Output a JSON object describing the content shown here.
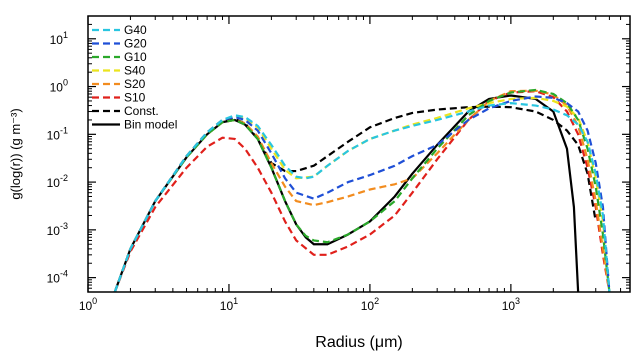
{
  "chart_data": {
    "type": "line",
    "xlabel": "Radius (μm)",
    "ylabel": "g(log(r)) (g m⁻³)",
    "x_scale": "log",
    "y_scale": "log",
    "xlim": [
      1,
      7000
    ],
    "ylim": [
      5e-05,
      30
    ],
    "x_ticks": [
      {
        "value": 1,
        "base": "10",
        "exp": "0"
      },
      {
        "value": 10,
        "base": "10",
        "exp": "1"
      },
      {
        "value": 100,
        "base": "10",
        "exp": "2"
      },
      {
        "value": 1000,
        "base": "10",
        "exp": "3"
      }
    ],
    "y_ticks": [
      {
        "value": 0.0001,
        "base": "10",
        "exp": "-4"
      },
      {
        "value": 0.001,
        "base": "10",
        "exp": "-3"
      },
      {
        "value": 0.01,
        "base": "10",
        "exp": "-2"
      },
      {
        "value": 0.1,
        "base": "10",
        "exp": "-1"
      },
      {
        "value": 1,
        "base": "10",
        "exp": "0"
      },
      {
        "value": 10,
        "base": "10",
        "exp": "1"
      }
    ],
    "legend_position": "top-left",
    "series": [
      {
        "name": "G40",
        "color": "#29c5e0",
        "dash": "dashed",
        "points": [
          [
            1.55,
            5e-05
          ],
          [
            2,
            0.0004
          ],
          [
            3,
            0.004
          ],
          [
            5,
            0.035
          ],
          [
            7,
            0.11
          ],
          [
            9,
            0.2
          ],
          [
            11,
            0.25
          ],
          [
            13,
            0.23
          ],
          [
            16,
            0.15
          ],
          [
            20,
            0.06
          ],
          [
            25,
            0.022
          ],
          [
            30,
            0.013
          ],
          [
            35,
            0.012
          ],
          [
            40,
            0.013
          ],
          [
            50,
            0.022
          ],
          [
            70,
            0.045
          ],
          [
            100,
            0.08
          ],
          [
            150,
            0.12
          ],
          [
            200,
            0.15
          ],
          [
            300,
            0.2
          ],
          [
            500,
            0.3
          ],
          [
            700,
            0.4
          ],
          [
            1000,
            0.45
          ],
          [
            1500,
            0.4
          ],
          [
            2000,
            0.33
          ],
          [
            2500,
            0.25
          ],
          [
            3000,
            0.16
          ],
          [
            3500,
            0.07
          ],
          [
            4000,
            0.015
          ],
          [
            4500,
            0.002
          ],
          [
            5000,
            5e-05
          ]
        ]
      },
      {
        "name": "G20",
        "color": "#1f4fd6",
        "dash": "dashed",
        "points": [
          [
            1.55,
            5e-05
          ],
          [
            2,
            0.0004
          ],
          [
            3,
            0.004
          ],
          [
            5,
            0.035
          ],
          [
            7,
            0.11
          ],
          [
            9,
            0.2
          ],
          [
            11,
            0.23
          ],
          [
            13,
            0.2
          ],
          [
            16,
            0.12
          ],
          [
            20,
            0.04
          ],
          [
            25,
            0.012
          ],
          [
            30,
            0.006
          ],
          [
            40,
            0.0045
          ],
          [
            50,
            0.006
          ],
          [
            70,
            0.01
          ],
          [
            100,
            0.014
          ],
          [
            150,
            0.022
          ],
          [
            200,
            0.035
          ],
          [
            300,
            0.06
          ],
          [
            500,
            0.2
          ],
          [
            700,
            0.35
          ],
          [
            1000,
            0.5
          ],
          [
            1500,
            0.62
          ],
          [
            2000,
            0.58
          ],
          [
            2500,
            0.45
          ],
          [
            3000,
            0.3
          ],
          [
            3500,
            0.12
          ],
          [
            4000,
            0.025
          ],
          [
            4500,
            0.003
          ],
          [
            5000,
            5e-05
          ]
        ]
      },
      {
        "name": "G10",
        "color": "#2aa82a",
        "dash": "dashed",
        "points": [
          [
            1.55,
            5e-05
          ],
          [
            2,
            0.0004
          ],
          [
            3,
            0.004
          ],
          [
            5,
            0.033
          ],
          [
            7,
            0.1
          ],
          [
            9,
            0.18
          ],
          [
            11,
            0.2
          ],
          [
            13,
            0.16
          ],
          [
            16,
            0.08
          ],
          [
            20,
            0.02
          ],
          [
            25,
            0.004
          ],
          [
            30,
            0.0013
          ],
          [
            35,
            0.00075
          ],
          [
            40,
            0.0006
          ],
          [
            50,
            0.00055
          ],
          [
            70,
            0.0008
          ],
          [
            100,
            0.0015
          ],
          [
            150,
            0.004
          ],
          [
            200,
            0.012
          ],
          [
            300,
            0.05
          ],
          [
            500,
            0.25
          ],
          [
            700,
            0.5
          ],
          [
            1000,
            0.75
          ],
          [
            1500,
            0.85
          ],
          [
            2000,
            0.7
          ],
          [
            2500,
            0.45
          ],
          [
            3000,
            0.2
          ],
          [
            3500,
            0.05
          ],
          [
            4000,
            0.008
          ],
          [
            4500,
            0.0008
          ],
          [
            5000,
            5e-05
          ]
        ]
      },
      {
        "name": "S40",
        "color": "#ebe41e",
        "dash": "dashed",
        "points": [
          [
            1.55,
            5e-05
          ],
          [
            2,
            0.0004
          ],
          [
            3,
            0.004
          ],
          [
            5,
            0.035
          ],
          [
            7,
            0.11
          ],
          [
            9,
            0.2
          ],
          [
            11,
            0.24
          ],
          [
            13,
            0.22
          ],
          [
            16,
            0.14
          ],
          [
            20,
            0.05
          ],
          [
            25,
            0.018
          ],
          [
            30,
            0.012
          ],
          [
            40,
            0.013
          ],
          [
            50,
            0.022
          ],
          [
            70,
            0.045
          ],
          [
            100,
            0.08
          ],
          [
            150,
            0.12
          ],
          [
            200,
            0.16
          ],
          [
            300,
            0.22
          ],
          [
            500,
            0.35
          ],
          [
            700,
            0.45
          ],
          [
            1000,
            0.55
          ],
          [
            1500,
            0.58
          ],
          [
            2000,
            0.5
          ],
          [
            2500,
            0.38
          ],
          [
            3000,
            0.22
          ],
          [
            3500,
            0.07
          ],
          [
            4000,
            0.012
          ],
          [
            4500,
            0.0015
          ],
          [
            5000,
            5e-05
          ]
        ]
      },
      {
        "name": "S20",
        "color": "#f28c1f",
        "dash": "dashed",
        "points": [
          [
            1.55,
            5e-05
          ],
          [
            2,
            0.0004
          ],
          [
            3,
            0.004
          ],
          [
            5,
            0.033
          ],
          [
            7,
            0.1
          ],
          [
            9,
            0.18
          ],
          [
            11,
            0.2
          ],
          [
            13,
            0.17
          ],
          [
            16,
            0.09
          ],
          [
            20,
            0.025
          ],
          [
            25,
            0.008
          ],
          [
            30,
            0.004
          ],
          [
            40,
            0.0033
          ],
          [
            50,
            0.0038
          ],
          [
            70,
            0.005
          ],
          [
            100,
            0.007
          ],
          [
            150,
            0.009
          ],
          [
            200,
            0.012
          ],
          [
            300,
            0.04
          ],
          [
            500,
            0.2
          ],
          [
            700,
            0.5
          ],
          [
            1000,
            0.8
          ],
          [
            1500,
            0.82
          ],
          [
            2000,
            0.68
          ],
          [
            2500,
            0.4
          ],
          [
            3000,
            0.15
          ],
          [
            3500,
            0.03
          ],
          [
            4000,
            0.004
          ],
          [
            4500,
            0.0004
          ],
          [
            5000,
            5e-05
          ]
        ]
      },
      {
        "name": "S10",
        "color": "#e0201b",
        "dash": "dashed",
        "points": [
          [
            1.55,
            5e-05
          ],
          [
            2,
            0.00035
          ],
          [
            3,
            0.003
          ],
          [
            5,
            0.02
          ],
          [
            7,
            0.055
          ],
          [
            9,
            0.085
          ],
          [
            11,
            0.08
          ],
          [
            13,
            0.05
          ],
          [
            16,
            0.02
          ],
          [
            20,
            0.006
          ],
          [
            25,
            0.0015
          ],
          [
            30,
            0.0006
          ],
          [
            40,
            0.0003
          ],
          [
            50,
            0.0003
          ],
          [
            70,
            0.00045
          ],
          [
            100,
            0.0008
          ],
          [
            150,
            0.002
          ],
          [
            200,
            0.006
          ],
          [
            300,
            0.03
          ],
          [
            500,
            0.2
          ],
          [
            700,
            0.5
          ],
          [
            1000,
            0.75
          ],
          [
            1500,
            0.8
          ],
          [
            2000,
            0.6
          ],
          [
            2500,
            0.3
          ],
          [
            3000,
            0.1
          ],
          [
            3500,
            0.02
          ],
          [
            4000,
            0.003
          ],
          [
            4500,
            0.0003
          ],
          [
            5000,
            5e-05
          ]
        ]
      },
      {
        "name": "Const.",
        "color": "#000000",
        "dash": "dashed",
        "points": [
          [
            1.55,
            5e-05
          ],
          [
            2,
            0.0004
          ],
          [
            3,
            0.004
          ],
          [
            5,
            0.035
          ],
          [
            7,
            0.11
          ],
          [
            9,
            0.2
          ],
          [
            11,
            0.21
          ],
          [
            13,
            0.17
          ],
          [
            16,
            0.08
          ],
          [
            20,
            0.025
          ],
          [
            25,
            0.017
          ],
          [
            30,
            0.017
          ],
          [
            40,
            0.022
          ],
          [
            50,
            0.035
          ],
          [
            70,
            0.07
          ],
          [
            100,
            0.14
          ],
          [
            150,
            0.22
          ],
          [
            200,
            0.28
          ],
          [
            300,
            0.33
          ],
          [
            500,
            0.37
          ],
          [
            700,
            0.38
          ],
          [
            1000,
            0.37
          ],
          [
            1500,
            0.3
          ],
          [
            2000,
            0.2
          ],
          [
            2500,
            0.12
          ],
          [
            3000,
            0.06
          ],
          [
            3500,
            0.015
          ],
          [
            4000,
            0.0015
          ]
        ]
      },
      {
        "name": "Bin model",
        "color": "#000000",
        "dash": "solid",
        "points": [
          [
            1.55,
            5e-05
          ],
          [
            2,
            0.0004
          ],
          [
            3,
            0.004
          ],
          [
            5,
            0.033
          ],
          [
            7,
            0.1
          ],
          [
            9,
            0.18
          ],
          [
            11,
            0.2
          ],
          [
            13,
            0.16
          ],
          [
            16,
            0.08
          ],
          [
            20,
            0.02
          ],
          [
            25,
            0.004
          ],
          [
            30,
            0.0013
          ],
          [
            35,
            0.0007
          ],
          [
            40,
            0.0005
          ],
          [
            50,
            0.0005
          ],
          [
            70,
            0.0008
          ],
          [
            100,
            0.0015
          ],
          [
            150,
            0.005
          ],
          [
            200,
            0.015
          ],
          [
            300,
            0.06
          ],
          [
            500,
            0.3
          ],
          [
            700,
            0.55
          ],
          [
            1000,
            0.65
          ],
          [
            1500,
            0.55
          ],
          [
            2000,
            0.3
          ],
          [
            2500,
            0.05
          ],
          [
            2800,
            0.003
          ],
          [
            3000,
            5e-05
          ]
        ]
      }
    ]
  }
}
